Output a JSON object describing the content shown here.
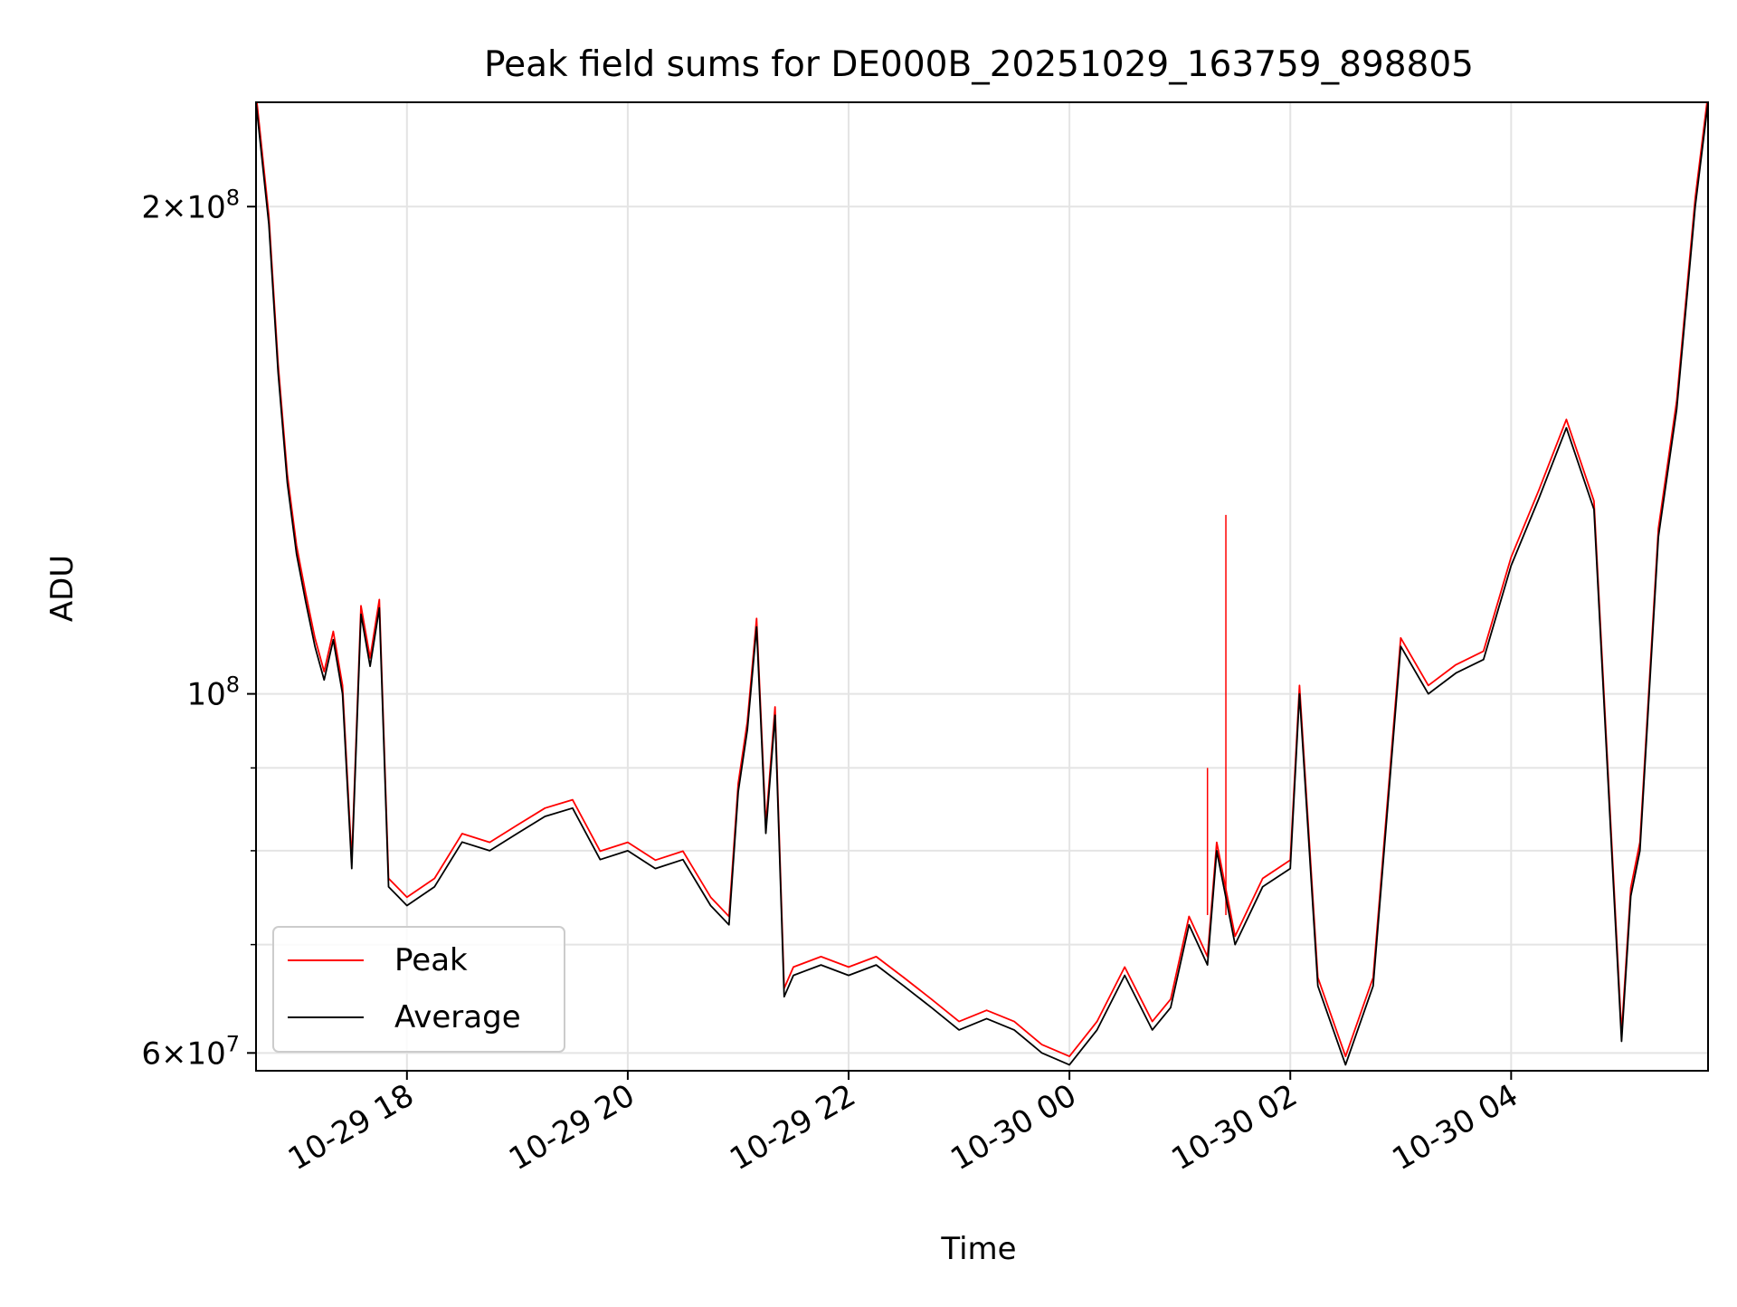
{
  "chart_data": {
    "type": "line",
    "title": "Peak field sums for DE000B_20251029_163759_898805",
    "xlabel": "Time",
    "ylabel": "ADU",
    "yscale": "log",
    "xlim": [
      "2025-10-29 16:38",
      "2025-10-30 05:47"
    ],
    "ylim": [
      58500000,
      232000000
    ],
    "grid": true,
    "legend_position": "lower-left",
    "x_ticks": [
      "2025-10-29 18:00",
      "2025-10-29 20:00",
      "2025-10-29 22:00",
      "2025-10-30 00:00",
      "2025-10-30 02:00",
      "2025-10-30 04:00"
    ],
    "x_tick_labels": [
      "10-29 18",
      "10-29 20",
      "10-29 22",
      "10-30 00",
      "10-30 02",
      "10-30 04"
    ],
    "y_major_ticks": [
      {
        "value": 200000000,
        "mant": "2",
        "exp": "8"
      },
      {
        "value": 100000000,
        "mant": "",
        "exp": "8"
      },
      {
        "value": 60000000,
        "mant": "6",
        "exp": "7"
      }
    ],
    "y_minor_grid": [
      70000000,
      80000000,
      90000000
    ],
    "series": [
      {
        "name": "Peak",
        "color": "#ff0000"
      },
      {
        "name": "Average",
        "color": "#000000"
      }
    ],
    "x": [
      "2025-10-29 16:38",
      "2025-10-29 16:45",
      "2025-10-29 16:50",
      "2025-10-29 16:55",
      "2025-10-29 17:00",
      "2025-10-29 17:05",
      "2025-10-29 17:10",
      "2025-10-29 17:15",
      "2025-10-29 17:20",
      "2025-10-29 17:25",
      "2025-10-29 17:30",
      "2025-10-29 17:35",
      "2025-10-29 17:40",
      "2025-10-29 17:45",
      "2025-10-29 17:50",
      "2025-10-29 17:55",
      "2025-10-29 18:00",
      "2025-10-29 18:15",
      "2025-10-29 18:30",
      "2025-10-29 18:45",
      "2025-10-29 19:00",
      "2025-10-29 19:15",
      "2025-10-29 19:30",
      "2025-10-29 19:45",
      "2025-10-29 20:00",
      "2025-10-29 20:15",
      "2025-10-29 20:30",
      "2025-10-29 20:45",
      "2025-10-29 20:55",
      "2025-10-29 21:00",
      "2025-10-29 21:05",
      "2025-10-29 21:10",
      "2025-10-29 21:15",
      "2025-10-29 21:20",
      "2025-10-29 21:25",
      "2025-10-29 21:30",
      "2025-10-29 21:45",
      "2025-10-29 22:00",
      "2025-10-29 22:15",
      "2025-10-29 22:30",
      "2025-10-29 22:45",
      "2025-10-29 23:00",
      "2025-10-29 23:15",
      "2025-10-29 23:30",
      "2025-10-29 23:45",
      "2025-10-30 00:00",
      "2025-10-30 00:15",
      "2025-10-30 00:30",
      "2025-10-30 00:45",
      "2025-10-30 00:55",
      "2025-10-30 01:05",
      "2025-10-30 01:15",
      "2025-10-30 01:20",
      "2025-10-30 01:30",
      "2025-10-30 01:45",
      "2025-10-30 02:00",
      "2025-10-30 02:05",
      "2025-10-30 02:15",
      "2025-10-30 02:30",
      "2025-10-30 02:45",
      "2025-10-30 03:00",
      "2025-10-30 03:15",
      "2025-10-30 03:30",
      "2025-10-30 03:45",
      "2025-10-30 04:00",
      "2025-10-30 04:15",
      "2025-10-30 04:30",
      "2025-10-30 04:45",
      "2025-10-30 05:00",
      "2025-10-30 05:05",
      "2025-10-30 05:10",
      "2025-10-30 05:20",
      "2025-10-30 05:30",
      "2025-10-30 05:40",
      "2025-10-30 05:47"
    ],
    "y": [
      232000000,
      195000000,
      158000000,
      135000000,
      122000000,
      114000000,
      107000000,
      102000000,
      108000000,
      100000000,
      78000000,
      112000000,
      104000000,
      113000000,
      76000000,
      75000000,
      74000000,
      76000000,
      81000000,
      80000000,
      82000000,
      84000000,
      85000000,
      79000000,
      80000000,
      78000000,
      79000000,
      74000000,
      72000000,
      87000000,
      95000000,
      110000000,
      82000000,
      97000000,
      65000000,
      67000000,
      68000000,
      67000000,
      68000000,
      66000000,
      64000000,
      62000000,
      63000000,
      62000000,
      60000000,
      59000000,
      62000000,
      67000000,
      62000000,
      64000000,
      72000000,
      68000000,
      80000000,
      70000000,
      76000000,
      78000000,
      100000000,
      66000000,
      59000000,
      66000000,
      107000000,
      100000000,
      103000000,
      105000000,
      120000000,
      132000000,
      146000000,
      130000000,
      61000000,
      75000000,
      80000000,
      125000000,
      150000000,
      200000000,
      232000000
    ],
    "spikes": [
      {
        "x": "2025-10-30 01:15",
        "y": 90000000
      },
      {
        "x": "2025-10-30 01:25",
        "y": 129000000
      }
    ]
  }
}
